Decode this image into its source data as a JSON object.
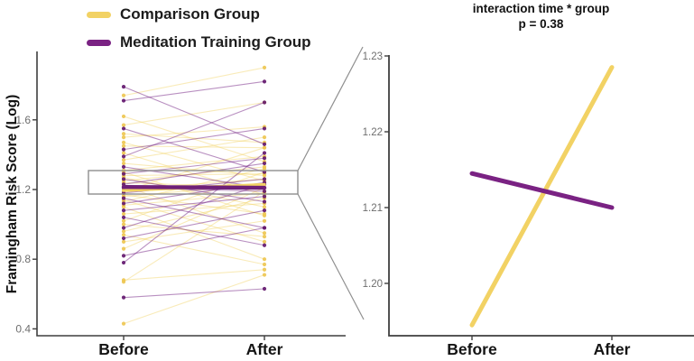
{
  "legend": {
    "items": [
      {
        "label": "Comparison Group",
        "color": "#F2D264"
      },
      {
        "label": "Meditation Training Group",
        "color": "#7A2283"
      }
    ]
  },
  "left_panel": {
    "ylabel": "Framingham Risk Score (Log)",
    "ytick_labels": [
      "1.6",
      "1.2",
      "0.8",
      "0.4"
    ],
    "xtick_labels": [
      "Before",
      "After"
    ]
  },
  "right_panel": {
    "title": "interaction time * group",
    "subtitle": "p  = 0.38",
    "ytick_labels": [
      "1.23",
      "1.22",
      "1.21",
      "1.20"
    ],
    "xtick_labels": [
      "Before",
      "After"
    ]
  },
  "colors": {
    "comparison": "#F2D264",
    "comparison_dot": "#EEC752",
    "meditation": "#7A2283",
    "meditation_dot": "#64196F",
    "axis": "#3f3f3f",
    "tick_text": "#6e6e6e",
    "zoom_gray": "#8f8f8f"
  },
  "chart_data": [
    {
      "type": "line",
      "panel": "left",
      "title": "",
      "xlabel": "",
      "ylabel": "Framingham Risk Score (Log)",
      "categories": [
        "Before",
        "After"
      ],
      "ylim": [
        0.4,
        1.92
      ],
      "yticks": [
        1.6,
        1.2,
        0.8,
        0.4
      ],
      "grid": false,
      "legend_position": "top-left",
      "series": [
        {
          "name": "Comparison Group",
          "color": "#F2D264",
          "subjects": [
            [
              1.74,
              1.9
            ],
            [
              1.62,
              1.36
            ],
            [
              1.57,
              1.7
            ],
            [
              1.52,
              1.47
            ],
            [
              1.5,
              1.56
            ],
            [
              1.47,
              1.25
            ],
            [
              1.45,
              1.44
            ],
            [
              1.41,
              1.17
            ],
            [
              1.37,
              1.5
            ],
            [
              1.35,
              1.28
            ],
            [
              1.31,
              1.39
            ],
            [
              1.3,
              1.05
            ],
            [
              1.28,
              1.29
            ],
            [
              1.27,
              1.1
            ],
            [
              1.25,
              1.33
            ],
            [
              1.24,
              1.21
            ],
            [
              1.22,
              0.95
            ],
            [
              1.2,
              1.26
            ],
            [
              1.19,
              1.44
            ],
            [
              1.17,
              1.06
            ],
            [
              1.16,
              1.23
            ],
            [
              1.14,
              0.9
            ],
            [
              1.13,
              1.32
            ],
            [
              1.11,
              1.18
            ],
            [
              1.1,
              0.8
            ],
            [
              1.06,
              1.12
            ],
            [
              1.02,
              1.3
            ],
            [
              1.0,
              0.93
            ],
            [
              0.96,
              1.15
            ],
            [
              0.94,
              0.77
            ],
            [
              0.9,
              1.02
            ],
            [
              0.86,
              1.21
            ],
            [
              0.68,
              0.74
            ],
            [
              0.67,
              1.19
            ],
            [
              0.43,
              0.71
            ]
          ]
        },
        {
          "name": "Meditation Training Group",
          "color": "#7A2283",
          "subjects": [
            [
              1.79,
              1.46
            ],
            [
              1.71,
              1.82
            ],
            [
              1.55,
              1.3
            ],
            [
              1.43,
              1.55
            ],
            [
              1.39,
              1.7
            ],
            [
              1.33,
              1.21
            ],
            [
              1.29,
              1.38
            ],
            [
              1.26,
              1.13
            ],
            [
              1.23,
              1.35
            ],
            [
              1.21,
              1.19
            ],
            [
              1.18,
              1.26
            ],
            [
              1.15,
              0.98
            ],
            [
              1.12,
              1.24
            ],
            [
              1.08,
              1.16
            ],
            [
              1.04,
              0.88
            ],
            [
              0.98,
              1.23
            ],
            [
              0.92,
              1.08
            ],
            [
              0.82,
              0.98
            ],
            [
              0.78,
              1.41
            ],
            [
              0.58,
              0.63
            ]
          ]
        }
      ],
      "group_means": {
        "comparison": [
          1.1945,
          1.2285
        ],
        "meditation": [
          1.2145,
          1.21
        ]
      },
      "zoom_box_value_range": [
        1.16,
        1.3
      ]
    },
    {
      "type": "line",
      "panel": "right",
      "title": "interaction time * group",
      "annotation": "p  = 0.38",
      "categories": [
        "Before",
        "After"
      ],
      "ylim": [
        1.194,
        1.2305
      ],
      "yticks": [
        1.23,
        1.22,
        1.21,
        1.2
      ],
      "grid": false,
      "series": [
        {
          "name": "Comparison Group",
          "color": "#F2D264",
          "values": [
            1.1945,
            1.2285
          ]
        },
        {
          "name": "Meditation Training Group",
          "color": "#7A2283",
          "values": [
            1.2145,
            1.21
          ]
        }
      ]
    }
  ]
}
